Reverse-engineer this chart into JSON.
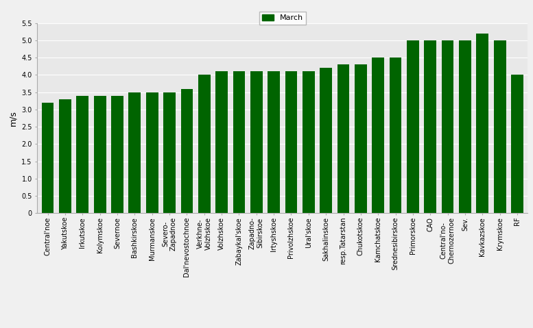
{
  "categories": [
    "Central'noe",
    "Yakutskoe",
    "Irkutskoe",
    "Kolymskoe",
    "Severnoe",
    "Bashkirskoe",
    "Murmanskoe",
    "Severo-\nZapadnoe",
    "Dal'nevostochnoe",
    "Verkhne-\nVolzhskoe",
    "Volzhskoe",
    "Zabaykal'skoe",
    "Zapadno-\nSibirskoe",
    "Irtyshskoe",
    "Privolzhskoe",
    "Ural'skoe",
    "Sakhalinskoe",
    "resp.Tatarstan",
    "Chukotskoe",
    "Kamchatskoe",
    "Srednesibirskoe",
    "Primorskoe",
    "CAO",
    "Central'no-\nChernozernoe",
    "Sev.",
    "Kavkazskoe",
    "Krymskoe",
    "RF"
  ],
  "values": [
    3.2,
    3.3,
    3.4,
    3.4,
    3.4,
    3.5,
    3.5,
    3.5,
    3.6,
    4.0,
    4.1,
    4.1,
    4.1,
    4.1,
    4.1,
    4.1,
    4.2,
    4.3,
    4.3,
    4.5,
    4.5,
    5.0,
    5.0,
    5.0,
    5.0,
    5.2,
    5.0,
    4.0
  ],
  "bar_color": "#006400",
  "plot_bg_color": "#e8e8e8",
  "fig_bg_color": "#f0f0f0",
  "ylabel": "m/s",
  "ylim": [
    0,
    5.5
  ],
  "yticks": [
    0,
    0.5,
    1.0,
    1.5,
    2.0,
    2.5,
    3.0,
    3.5,
    4.0,
    4.5,
    5.0,
    5.5
  ],
  "legend_label": "March",
  "ylabel_fontsize": 9,
  "tick_fontsize": 7,
  "legend_fontsize": 8,
  "bar_width": 0.7
}
